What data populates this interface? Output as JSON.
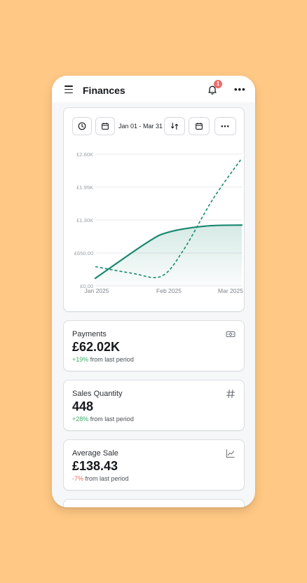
{
  "app": {
    "title": "Finances",
    "notification_count": "1"
  },
  "toolbar": {
    "date_range": "Jan 01 - Mar 31"
  },
  "chart_data": {
    "type": "line",
    "x": [
      "Jan 2025",
      "Feb 2025",
      "Mar 2025"
    ],
    "y_ticks": [
      "£0.00",
      "£650.00",
      "£1.30K",
      "£1.95K",
      "£2.60K"
    ],
    "ylim": [
      0,
      2600
    ],
    "series": [
      {
        "style": "solid-area",
        "points": [
          [
            0,
            150
          ],
          [
            0.35,
            850
          ],
          [
            0.5,
            1060
          ],
          [
            0.75,
            1180
          ],
          [
            1,
            1200
          ]
        ]
      },
      {
        "style": "dashed",
        "points": [
          [
            0,
            380
          ],
          [
            0.25,
            250
          ],
          [
            0.45,
            190
          ],
          [
            0.6,
            700
          ],
          [
            0.8,
            1700
          ],
          [
            1,
            2520
          ]
        ]
      }
    ],
    "colors": {
      "line": "#19896F",
      "area": "#D6EAE5",
      "grid": "#E6E8EB"
    }
  },
  "stats": [
    {
      "label": "Payments",
      "value": "£62.02K",
      "delta": "+19%",
      "delta_suffix": "from last period",
      "trend": "up",
      "icon": "banknote-icon"
    },
    {
      "label": "Sales Quantity",
      "value": "448",
      "delta": "+28%",
      "delta_suffix": "from last period",
      "trend": "up",
      "icon": "hash-icon"
    },
    {
      "label": "Average Sale",
      "value": "£138.43",
      "delta": "-7%",
      "delta_suffix": "from last period",
      "trend": "down",
      "icon": "chart-line-icon"
    }
  ]
}
